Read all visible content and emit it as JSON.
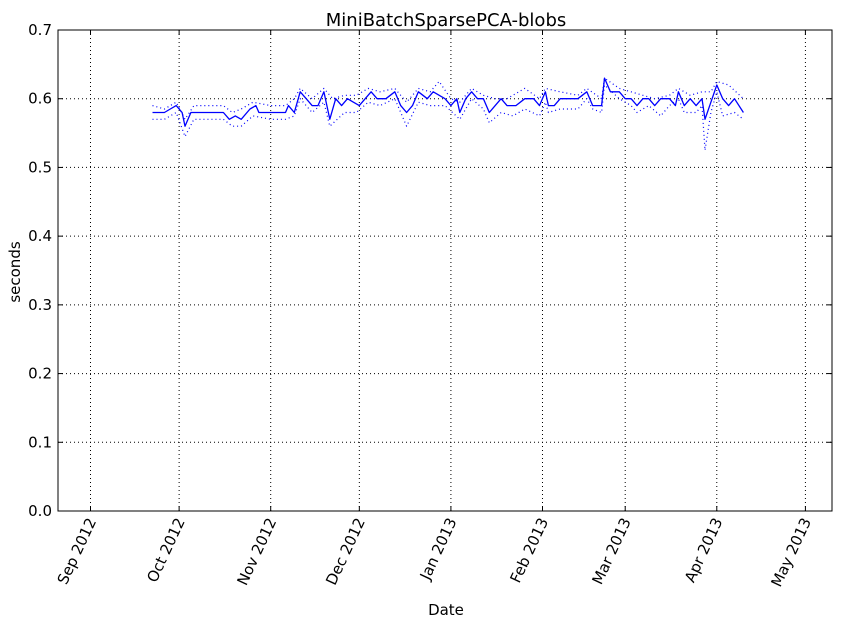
{
  "chart_data": {
    "type": "line",
    "title": "MiniBatchSparsePCA-blobs",
    "xlabel": "Date",
    "ylabel": "seconds",
    "xlim": [
      "2012-08-21",
      "2013-05-10"
    ],
    "ylim": [
      0.0,
      0.7
    ],
    "x_ticks": [
      {
        "date": "2012-09-01",
        "label": "Sep 2012"
      },
      {
        "date": "2012-10-01",
        "label": "Oct 2012"
      },
      {
        "date": "2012-11-01",
        "label": "Nov 2012"
      },
      {
        "date": "2012-12-01",
        "label": "Dec 2012"
      },
      {
        "date": "2013-01-01",
        "label": "Jan 2013"
      },
      {
        "date": "2013-02-01",
        "label": "Feb 2013"
      },
      {
        "date": "2013-03-01",
        "label": "Mar 2013"
      },
      {
        "date": "2013-04-01",
        "label": "Apr 2013"
      },
      {
        "date": "2013-05-01",
        "label": "May 2013"
      }
    ],
    "y_ticks": [
      "0.0",
      "0.1",
      "0.2",
      "0.3",
      "0.4",
      "0.5",
      "0.6",
      "0.7"
    ],
    "grid": true,
    "colors": {
      "series": "#0000ff",
      "axes": "#000000",
      "grid": "#000000"
    },
    "series": [
      {
        "style": "solid",
        "points": [
          [
            "2012-09-22",
            0.58
          ],
          [
            "2012-09-24",
            0.58
          ],
          [
            "2012-09-26",
            0.58
          ],
          [
            "2012-09-28",
            0.585
          ],
          [
            "2012-09-30",
            0.59
          ],
          [
            "2012-10-02",
            0.58
          ],
          [
            "2012-10-03",
            0.56
          ],
          [
            "2012-10-05",
            0.58
          ],
          [
            "2012-10-08",
            0.58
          ],
          [
            "2012-10-12",
            0.58
          ],
          [
            "2012-10-16",
            0.58
          ],
          [
            "2012-10-18",
            0.57
          ],
          [
            "2012-10-20",
            0.575
          ],
          [
            "2012-10-22",
            0.57
          ],
          [
            "2012-10-25",
            0.585
          ],
          [
            "2012-10-27",
            0.59
          ],
          [
            "2012-10-28",
            0.58
          ],
          [
            "2012-11-01",
            0.58
          ],
          [
            "2012-11-04",
            0.58
          ],
          [
            "2012-11-06",
            0.58
          ],
          [
            "2012-11-07",
            0.59
          ],
          [
            "2012-11-09",
            0.58
          ],
          [
            "2012-11-11",
            0.61
          ],
          [
            "2012-11-13",
            0.6
          ],
          [
            "2012-11-15",
            0.59
          ],
          [
            "2012-11-17",
            0.59
          ],
          [
            "2012-11-19",
            0.61
          ],
          [
            "2012-11-21",
            0.57
          ],
          [
            "2012-11-23",
            0.6
          ],
          [
            "2012-11-25",
            0.59
          ],
          [
            "2012-11-27",
            0.6
          ],
          [
            "2012-11-29",
            0.595
          ],
          [
            "2012-12-01",
            0.59
          ],
          [
            "2012-12-03",
            0.6
          ],
          [
            "2012-12-05",
            0.61
          ],
          [
            "2012-12-07",
            0.6
          ],
          [
            "2012-12-10",
            0.6
          ],
          [
            "2012-12-13",
            0.61
          ],
          [
            "2012-12-15",
            0.59
          ],
          [
            "2012-12-17",
            0.58
          ],
          [
            "2012-12-19",
            0.59
          ],
          [
            "2012-12-21",
            0.61
          ],
          [
            "2012-12-24",
            0.6
          ],
          [
            "2012-12-26",
            0.61
          ],
          [
            "2012-12-30",
            0.6
          ],
          [
            "2013-01-01",
            0.59
          ],
          [
            "2013-01-03",
            0.6
          ],
          [
            "2013-01-04",
            0.58
          ],
          [
            "2013-01-06",
            0.6
          ],
          [
            "2013-01-08",
            0.61
          ],
          [
            "2013-01-10",
            0.6
          ],
          [
            "2013-01-12",
            0.6
          ],
          [
            "2013-01-14",
            0.58
          ],
          [
            "2013-01-16",
            0.59
          ],
          [
            "2013-01-18",
            0.6
          ],
          [
            "2013-01-20",
            0.59
          ],
          [
            "2013-01-23",
            0.59
          ],
          [
            "2013-01-26",
            0.6
          ],
          [
            "2013-01-29",
            0.6
          ],
          [
            "2013-01-31",
            0.59
          ],
          [
            "2013-02-02",
            0.61
          ],
          [
            "2013-02-03",
            0.59
          ],
          [
            "2013-02-05",
            0.59
          ],
          [
            "2013-02-07",
            0.6
          ],
          [
            "2013-02-10",
            0.6
          ],
          [
            "2013-02-13",
            0.6
          ],
          [
            "2013-02-16",
            0.61
          ],
          [
            "2013-02-18",
            0.59
          ],
          [
            "2013-02-21",
            0.59
          ],
          [
            "2013-02-22",
            0.63
          ],
          [
            "2013-02-24",
            0.61
          ],
          [
            "2013-02-27",
            0.61
          ],
          [
            "2013-03-01",
            0.6
          ],
          [
            "2013-03-03",
            0.6
          ],
          [
            "2013-03-05",
            0.59
          ],
          [
            "2013-03-07",
            0.6
          ],
          [
            "2013-03-09",
            0.6
          ],
          [
            "2013-03-11",
            0.59
          ],
          [
            "2013-03-13",
            0.6
          ],
          [
            "2013-03-16",
            0.6
          ],
          [
            "2013-03-18",
            0.59
          ],
          [
            "2013-03-19",
            0.61
          ],
          [
            "2013-03-21",
            0.59
          ],
          [
            "2013-03-23",
            0.6
          ],
          [
            "2013-03-25",
            0.59
          ],
          [
            "2013-03-27",
            0.6
          ],
          [
            "2013-03-28",
            0.57
          ],
          [
            "2013-03-30",
            0.595
          ],
          [
            "2013-04-01",
            0.62
          ],
          [
            "2013-04-03",
            0.6
          ],
          [
            "2013-04-05",
            0.59
          ],
          [
            "2013-04-07",
            0.6
          ],
          [
            "2013-04-10",
            0.58
          ]
        ]
      },
      {
        "style": "dotted",
        "points": [
          [
            "2012-09-22",
            0.59
          ],
          [
            "2012-09-26",
            0.585
          ],
          [
            "2012-09-30",
            0.595
          ],
          [
            "2012-10-03",
            0.57
          ],
          [
            "2012-10-06",
            0.59
          ],
          [
            "2012-10-12",
            0.59
          ],
          [
            "2012-10-16",
            0.59
          ],
          [
            "2012-10-19",
            0.58
          ],
          [
            "2012-10-22",
            0.585
          ],
          [
            "2012-10-26",
            0.595
          ],
          [
            "2012-11-01",
            0.59
          ],
          [
            "2012-11-06",
            0.59
          ],
          [
            "2012-11-09",
            0.6
          ],
          [
            "2012-11-11",
            0.615
          ],
          [
            "2012-11-15",
            0.6
          ],
          [
            "2012-11-19",
            0.615
          ],
          [
            "2012-11-22",
            0.6
          ],
          [
            "2012-11-26",
            0.605
          ],
          [
            "2012-11-30",
            0.605
          ],
          [
            "2012-12-04",
            0.615
          ],
          [
            "2012-12-08",
            0.61
          ],
          [
            "2012-12-13",
            0.615
          ],
          [
            "2012-12-17",
            0.595
          ],
          [
            "2012-12-21",
            0.615
          ],
          [
            "2012-12-25",
            0.61
          ],
          [
            "2012-12-28",
            0.625
          ],
          [
            "2013-01-01",
            0.6
          ],
          [
            "2013-01-04",
            0.595
          ],
          [
            "2013-01-08",
            0.615
          ],
          [
            "2013-01-12",
            0.605
          ],
          [
            "2013-01-16",
            0.6
          ],
          [
            "2013-01-20",
            0.6
          ],
          [
            "2013-01-26",
            0.615
          ],
          [
            "2013-01-31",
            0.6
          ],
          [
            "2013-02-02",
            0.615
          ],
          [
            "2013-02-07",
            0.61
          ],
          [
            "2013-02-13",
            0.605
          ],
          [
            "2013-02-16",
            0.615
          ],
          [
            "2013-02-21",
            0.6
          ],
          [
            "2013-02-22",
            0.63
          ],
          [
            "2013-02-27",
            0.615
          ],
          [
            "2013-03-03",
            0.61
          ],
          [
            "2013-03-07",
            0.605
          ],
          [
            "2013-03-11",
            0.6
          ],
          [
            "2013-03-16",
            0.605
          ],
          [
            "2013-03-19",
            0.615
          ],
          [
            "2013-03-23",
            0.605
          ],
          [
            "2013-03-27",
            0.61
          ],
          [
            "2013-03-30",
            0.61
          ],
          [
            "2013-04-01",
            0.625
          ],
          [
            "2013-04-05",
            0.62
          ],
          [
            "2013-04-10",
            0.6
          ]
        ]
      },
      {
        "style": "dotted",
        "points": [
          [
            "2012-09-22",
            0.57
          ],
          [
            "2012-09-26",
            0.57
          ],
          [
            "2012-09-30",
            0.58
          ],
          [
            "2012-10-03",
            0.545
          ],
          [
            "2012-10-06",
            0.57
          ],
          [
            "2012-10-12",
            0.57
          ],
          [
            "2012-10-16",
            0.57
          ],
          [
            "2012-10-19",
            0.56
          ],
          [
            "2012-10-22",
            0.56
          ],
          [
            "2012-10-26",
            0.575
          ],
          [
            "2012-11-01",
            0.57
          ],
          [
            "2012-11-06",
            0.57
          ],
          [
            "2012-11-09",
            0.575
          ],
          [
            "2012-11-11",
            0.6
          ],
          [
            "2012-11-15",
            0.58
          ],
          [
            "2012-11-19",
            0.595
          ],
          [
            "2012-11-21",
            0.56
          ],
          [
            "2012-11-26",
            0.58
          ],
          [
            "2012-11-30",
            0.58
          ],
          [
            "2012-12-04",
            0.595
          ],
          [
            "2012-12-08",
            0.59
          ],
          [
            "2012-12-13",
            0.6
          ],
          [
            "2012-12-17",
            0.56
          ],
          [
            "2012-12-21",
            0.595
          ],
          [
            "2012-12-25",
            0.59
          ],
          [
            "2012-12-30",
            0.59
          ],
          [
            "2013-01-04",
            0.57
          ],
          [
            "2013-01-08",
            0.6
          ],
          [
            "2013-01-12",
            0.585
          ],
          [
            "2013-01-14",
            0.565
          ],
          [
            "2013-01-18",
            0.58
          ],
          [
            "2013-01-22",
            0.575
          ],
          [
            "2013-01-26",
            0.585
          ],
          [
            "2013-01-31",
            0.575
          ],
          [
            "2013-02-02",
            0.595
          ],
          [
            "2013-02-03",
            0.58
          ],
          [
            "2013-02-07",
            0.585
          ],
          [
            "2013-02-13",
            0.585
          ],
          [
            "2013-02-16",
            0.6
          ],
          [
            "2013-02-18",
            0.585
          ],
          [
            "2013-02-21",
            0.58
          ],
          [
            "2013-02-22",
            0.62
          ],
          [
            "2013-02-27",
            0.6
          ],
          [
            "2013-03-03",
            0.59
          ],
          [
            "2013-03-05",
            0.58
          ],
          [
            "2013-03-09",
            0.59
          ],
          [
            "2013-03-13",
            0.575
          ],
          [
            "2013-03-16",
            0.59
          ],
          [
            "2013-03-19",
            0.6
          ],
          [
            "2013-03-21",
            0.58
          ],
          [
            "2013-03-25",
            0.58
          ],
          [
            "2013-03-27",
            0.59
          ],
          [
            "2013-03-28",
            0.525
          ],
          [
            "2013-03-30",
            0.58
          ],
          [
            "2013-04-01",
            0.61
          ],
          [
            "2013-04-03",
            0.575
          ],
          [
            "2013-04-07",
            0.58
          ],
          [
            "2013-04-10",
            0.57
          ]
        ]
      }
    ]
  }
}
